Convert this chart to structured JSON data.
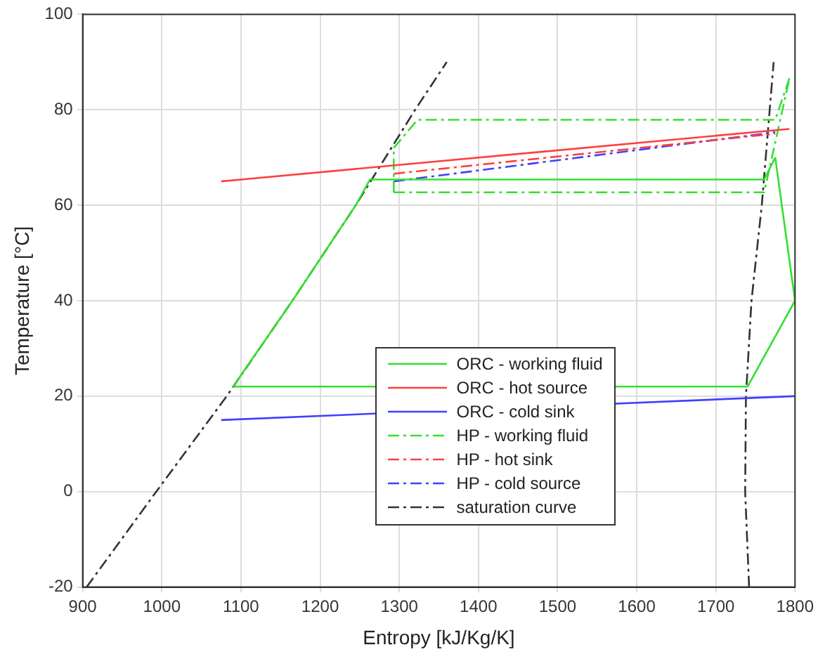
{
  "chart_data": {
    "type": "line",
    "xlabel": "Entropy [kJ/Kg/K]",
    "ylabel": "Temperature [°C]",
    "xlim": [
      900,
      1800
    ],
    "xticks": [
      900,
      1000,
      1100,
      1200,
      1300,
      1400,
      1500,
      1600,
      1700,
      1800
    ],
    "ylim": [
      -20,
      100
    ],
    "yticks": [
      -20,
      0,
      20,
      40,
      60,
      80,
      100
    ],
    "grid": true,
    "legend": "bottom",
    "marker": "none",
    "series": [
      {
        "name": "ORC - working fluid",
        "color": "#33e033",
        "line_style": "solid",
        "x": [
          1090,
          1165,
          1245,
          1263,
          1761,
          1775
        ],
        "values": [
          22,
          40,
          60,
          65.4,
          65.4,
          70
        ]
      },
      {
        "color": "#33e033",
        "line_style": "solid",
        "x": [
          1090,
          1740,
          1800
        ],
        "values": [
          22,
          22,
          40
        ]
      },
      {
        "color": "#33e033",
        "line_style": "solid",
        "x": [
          1775,
          1800
        ],
        "values": [
          70,
          40
        ]
      },
      {
        "name": "ORC - hot source",
        "color": "#ff4040",
        "line_style": "solid",
        "x": [
          1075,
          1793
        ],
        "values": [
          65,
          76
        ]
      },
      {
        "name": "ORC - cold sink",
        "color": "#4040ff",
        "line_style": "solid",
        "x": [
          1075,
          1800
        ],
        "values": [
          15,
          20
        ]
      },
      {
        "name": "HP - working fluid",
        "color": "#33e033",
        "line_style": "dashdot",
        "x": [
          1293,
          1761,
          1793
        ],
        "values": [
          62.7,
          62.7,
          86.6
        ]
      },
      {
        "color": "#33e033",
        "line_style": "dashdot",
        "x": [
          1293,
          1323,
          1775,
          1793
        ],
        "values": [
          72,
          77.9,
          77.9,
          86.6
        ]
      },
      {
        "color": "#33e033",
        "line_style": "dashdot",
        "x": [
          1293,
          1293
        ],
        "values": [
          62.7,
          72
        ]
      },
      {
        "name": "HP - hot sink",
        "color": "#ff4040",
        "line_style": "dashdot",
        "x": [
          1293,
          1775
        ],
        "values": [
          66.6,
          75
        ]
      },
      {
        "name": "HP - cold source",
        "color": "#4040ff",
        "line_style": "dashdot",
        "x": [
          1293,
          1775
        ],
        "values": [
          65,
          75.3
        ]
      },
      {
        "name": "saturation curve",
        "color": "#333333",
        "line_style": "dashdot",
        "x": [
          905,
          993,
          1082,
          1165,
          1245,
          1320,
          1360
        ],
        "values": [
          -20,
          0,
          20,
          40,
          60,
          80,
          90
        ]
      },
      {
        "color": "#333333",
        "line_style": "dashdot",
        "x": [
          1742,
          1737,
          1738,
          1745,
          1758,
          1768,
          1773
        ],
        "values": [
          -20,
          0,
          20,
          40,
          60,
          80,
          90
        ]
      }
    ]
  }
}
